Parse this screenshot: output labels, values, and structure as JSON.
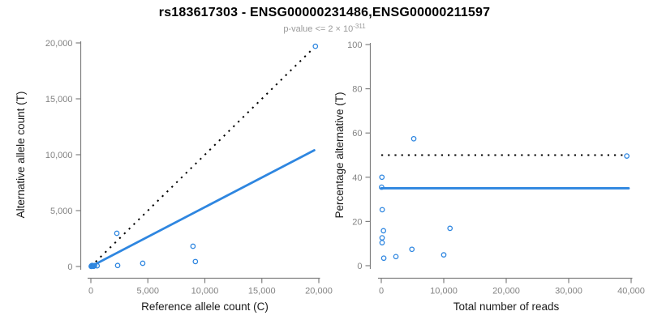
{
  "colors": {
    "background": "#ffffff",
    "axis": "#808080",
    "tick_text": "#838383",
    "label_text": "#1a1a1a",
    "title_text": "#000000",
    "subtitle_text": "#9a9a9a",
    "points": "#2e86e0",
    "fit_line": "#2e86e0",
    "reference_line": "#000000"
  },
  "chart_data": {
    "title": "rs183617303 - ENSG00000231486,ENSG00000211597",
    "subtitle_text": "p-value <= 2 × 10",
    "subtitle_exponent": "-311",
    "panels": [
      {
        "type": "scatter",
        "name": "allele-count-panel",
        "xlabel": "Reference allele count (C)",
        "ylabel": "Alternative allele count (T)",
        "xlim": [
          0,
          20000
        ],
        "ylim": [
          0,
          20000
        ],
        "grid": false,
        "legend": null,
        "xticks": {
          "values": [
            0,
            5000,
            10000,
            15000,
            20000
          ],
          "labels": [
            "0",
            "5,000",
            "10,000",
            "15,000",
            "20,000"
          ]
        },
        "yticks": {
          "values": [
            0,
            5000,
            10000,
            15000,
            20000
          ],
          "labels": [
            "0",
            "5,000",
            "10,000",
            "15,000",
            "20,000"
          ]
        },
        "points": [
          [
            30,
            10
          ],
          [
            80,
            35
          ],
          [
            150,
            55
          ],
          [
            240,
            20
          ],
          [
            120,
            90
          ],
          [
            60,
            65
          ],
          [
            330,
            80
          ],
          [
            550,
            60
          ],
          [
            2280,
            2970
          ],
          [
            2350,
            90
          ],
          [
            4550,
            290
          ],
          [
            8960,
            1810
          ],
          [
            9170,
            440
          ],
          [
            19700,
            19700
          ]
        ],
        "lines": [
          {
            "name": "identity-line",
            "style": "dotted",
            "color": "reference_line",
            "x": [
              0,
              19500
            ],
            "y": [
              0,
              19500
            ]
          },
          {
            "name": "fit-line",
            "style": "solid",
            "color": "fit_line",
            "x": [
              0,
              19600
            ],
            "y": [
              0,
              10400
            ]
          }
        ]
      },
      {
        "type": "scatter",
        "name": "percentage-panel",
        "xlabel": "Total number of reads",
        "ylabel": "Percentage alternative (T)",
        "xlim": [
          0,
          40000
        ],
        "ylim": [
          0,
          100
        ],
        "grid": false,
        "legend": null,
        "xticks": {
          "values": [
            0,
            10000,
            20000,
            30000,
            40000
          ],
          "labels": [
            "0",
            "10,000",
            "20,000",
            "30,000",
            "40,000"
          ]
        },
        "yticks": {
          "values": [
            0,
            20,
            40,
            60,
            80,
            100
          ],
          "labels": [
            "0",
            "20",
            "40",
            "60",
            "80",
            "100"
          ]
        },
        "points": [
          [
            100,
            40.0
          ],
          [
            50,
            35.5
          ],
          [
            150,
            25.3
          ],
          [
            350,
            15.8
          ],
          [
            130,
            12.6
          ],
          [
            130,
            10.4
          ],
          [
            400,
            3.4
          ],
          [
            2340,
            4.1
          ],
          [
            4900,
            7.4
          ],
          [
            5200,
            57.4
          ],
          [
            10000,
            4.9
          ],
          [
            11000,
            16.9
          ],
          [
            39300,
            49.6
          ]
        ],
        "lines": [
          {
            "name": "expected-50pct-line",
            "style": "dotted",
            "color": "reference_line",
            "x": [
              0,
              39000
            ],
            "y": [
              50,
              50
            ]
          },
          {
            "name": "fit-line",
            "style": "solid",
            "color": "fit_line",
            "x": [
              0,
              39600
            ],
            "y": [
              35,
              35
            ]
          }
        ]
      }
    ]
  }
}
